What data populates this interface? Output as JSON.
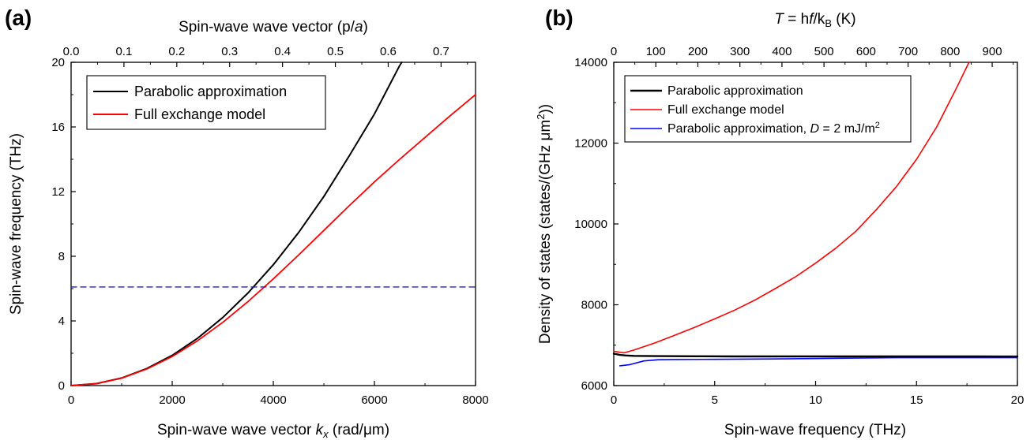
{
  "chart_data": [
    {
      "panel": "(a)",
      "type": "line",
      "xlabel_main": "Spin-wave wave vector ",
      "xlabel_var": "k",
      "xlabel_sub": "x",
      "xlabel_unit": " (rad/μm)",
      "ylabel": "Spin-wave frequency (THz)",
      "x2label_main": "Spin-wave wave vector (p/",
      "x2label_var": "a",
      "x2label_end": ")",
      "xlim": [
        0,
        8000
      ],
      "ylim": [
        0,
        20
      ],
      "x2lim": [
        0,
        0.7652
      ],
      "xticks": [
        0,
        2000,
        4000,
        6000,
        8000
      ],
      "xtick_labels": [
        "0",
        "2000",
        "4000",
        "6000",
        "8000"
      ],
      "yticks": [
        0,
        4,
        8,
        12,
        16,
        20
      ],
      "ytick_labels": [
        "0",
        "4",
        "8",
        "12",
        "16",
        "20"
      ],
      "x2ticks": [
        0.0,
        0.1,
        0.2,
        0.3,
        0.4,
        0.5,
        0.6,
        0.7
      ],
      "x2tick_labels": [
        "0.0",
        "0.1",
        "0.2",
        "0.3",
        "0.4",
        "0.5",
        "0.6",
        "0.7"
      ],
      "legend_position": "top-left",
      "grid": false,
      "series": [
        {
          "name": "Parabolic approximation",
          "color": "#000000",
          "style": "solid",
          "x": [
            0,
            500,
            1000,
            1500,
            2000,
            2500,
            3000,
            3500,
            4000,
            4500,
            5000,
            5500,
            6000,
            6500,
            6540
          ],
          "y": [
            0,
            0.12,
            0.47,
            1.06,
            1.87,
            2.92,
            4.21,
            5.73,
            7.48,
            9.47,
            11.7,
            14.2,
            16.8,
            19.8,
            20.0
          ]
        },
        {
          "name": "Full exchange model",
          "color": "#ff0000",
          "style": "solid",
          "x": [
            0,
            500,
            1000,
            1500,
            2000,
            2500,
            3000,
            3500,
            4000,
            4500,
            5000,
            5500,
            6000,
            6500,
            7000,
            7500,
            8000
          ],
          "y": [
            0,
            0.12,
            0.46,
            1.03,
            1.8,
            2.77,
            3.91,
            5.2,
            6.6,
            8.08,
            9.6,
            11.12,
            12.6,
            14.0,
            15.35,
            16.7,
            18.0
          ]
        },
        {
          "name": "",
          "color": "#2222cc",
          "style": "dashed",
          "x": [
            0,
            8000
          ],
          "y": [
            6.1,
            6.1
          ]
        }
      ]
    },
    {
      "panel": "(b)",
      "type": "line",
      "xlabel": "Spin-wave frequency (THz)",
      "ylabel_main": "Density of states (states/(GHz μm",
      "ylabel_sup": "2",
      "ylabel_end": "))",
      "x2label_var": "T",
      "x2label_main": " = h",
      "x2label_var2": "f",
      "x2label_mid": "/k",
      "x2label_sub": "B",
      "x2label_unit": " (K)",
      "xlim": [
        0,
        20
      ],
      "ylim": [
        6000,
        14000
      ],
      "x2lim": [
        0,
        960
      ],
      "xticks": [
        0,
        5,
        10,
        15,
        20
      ],
      "xtick_labels": [
        "0",
        "5",
        "10",
        "15",
        "20"
      ],
      "yticks": [
        6000,
        8000,
        10000,
        12000,
        14000
      ],
      "ytick_labels": [
        "6000",
        "8000",
        "10000",
        "12000",
        "14000"
      ],
      "x2ticks": [
        0,
        100,
        200,
        300,
        400,
        500,
        600,
        700,
        800,
        900
      ],
      "x2tick_labels": [
        "0",
        "100",
        "200",
        "300",
        "400",
        "500",
        "600",
        "700",
        "800",
        "900"
      ],
      "legend_position": "top-left",
      "grid": false,
      "series": [
        {
          "name": "Parabolic approximation",
          "color": "#000000",
          "style": "solid",
          "x": [
            0,
            0.3,
            0.6,
            1,
            2,
            4,
            6,
            8,
            10,
            12,
            14,
            16,
            18,
            20
          ],
          "y": [
            6790,
            6760,
            6745,
            6735,
            6730,
            6725,
            6722,
            6722,
            6722,
            6722,
            6722,
            6722,
            6722,
            6720
          ]
        },
        {
          "name": "Full exchange model",
          "color": "#ff0000",
          "style": "solid",
          "x": [
            0,
            0.5,
            1,
            2,
            3,
            4,
            5,
            6,
            7,
            8,
            9,
            10,
            11,
            12,
            13,
            14,
            15,
            16,
            17,
            17.6
          ],
          "y": [
            6850,
            6810,
            6880,
            7050,
            7240,
            7440,
            7650,
            7870,
            8120,
            8400,
            8690,
            9030,
            9400,
            9820,
            10350,
            10920,
            11600,
            12400,
            13380,
            14000
          ]
        },
        {
          "name": "Parabolic approximation, D = 2 mJ/m2",
          "legend_prefix": "Parabolic approximation, ",
          "legend_var": "D",
          "legend_mid": " = 2 mJ/m",
          "legend_sup": "2",
          "color": "#0000ff",
          "style": "solid",
          "x": [
            0.3,
            0.8,
            1.5,
            2.2,
            3,
            5,
            8,
            10,
            12,
            14,
            16,
            18,
            20
          ],
          "y": [
            6490,
            6520,
            6610,
            6640,
            6645,
            6650,
            6660,
            6670,
            6680,
            6690,
            6690,
            6690,
            6690
          ]
        }
      ]
    }
  ]
}
